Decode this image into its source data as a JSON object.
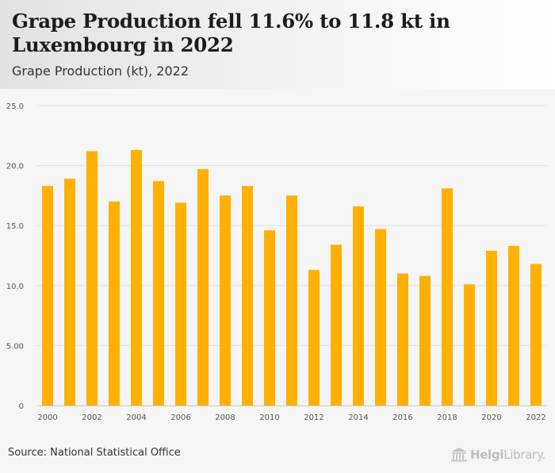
{
  "header": {
    "title": "Grape Production fell 11.6% to 11.8 kt in Luxembourg in 2022",
    "subtitle": "Grape Production (kt), 2022"
  },
  "footer": {
    "source": "Source: National Statistical Office",
    "brand_a": "Helgi",
    "brand_b": "Library."
  },
  "colors": {
    "bar": "#FFB000",
    "grid": "#e2e2e2",
    "axis_text": "#555555"
  },
  "chart_data": {
    "type": "bar",
    "categories": [
      "2000",
      "2001",
      "2002",
      "2003",
      "2004",
      "2005",
      "2006",
      "2007",
      "2008",
      "2009",
      "2010",
      "2011",
      "2012",
      "2013",
      "2014",
      "2015",
      "2016",
      "2017",
      "2018",
      "2019",
      "2020",
      "2021",
      "2022"
    ],
    "values": [
      18.3,
      18.9,
      21.2,
      17.0,
      21.3,
      18.7,
      16.9,
      19.7,
      17.5,
      18.3,
      14.6,
      17.5,
      11.3,
      13.4,
      16.6,
      14.7,
      11.0,
      10.8,
      18.1,
      10.1,
      12.9,
      13.3,
      11.8
    ],
    "x_tick_labels": [
      "2000",
      "2002",
      "2004",
      "2006",
      "2008",
      "2010",
      "2012",
      "2014",
      "2016",
      "2018",
      "2020",
      "2022"
    ],
    "y_ticks": [
      0,
      5,
      10,
      15,
      20,
      25
    ],
    "y_tick_labels": [
      "0",
      "5.00",
      "10.0",
      "15.0",
      "20.0",
      "25.0"
    ],
    "ylim": [
      0,
      25
    ],
    "grid": true,
    "legend": "none"
  }
}
